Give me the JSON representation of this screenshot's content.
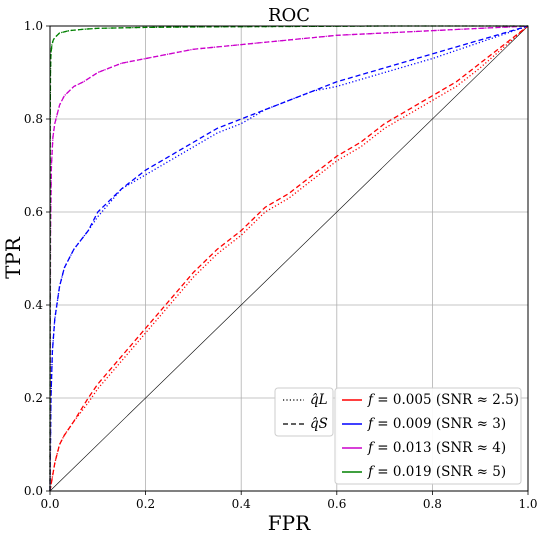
{
  "chart_data": {
    "type": "line",
    "title": "ROC",
    "xlabel": "FPR",
    "ylabel": "TPR",
    "xlim": [
      0,
      1
    ],
    "ylim": [
      0,
      1
    ],
    "xticks": [
      "0.0",
      "0.2",
      "0.4",
      "0.6",
      "0.8",
      "1.0"
    ],
    "yticks": [
      "0.0",
      "0.2",
      "0.4",
      "0.6",
      "0.8",
      "1.0"
    ],
    "grid": true,
    "diagonal_reference": true,
    "style_legend": {
      "placement": "lower-right",
      "entries": [
        {
          "label": "q̂L",
          "linestyle": "dotted"
        },
        {
          "label": "q̂S",
          "linestyle": "dashed"
        }
      ]
    },
    "series_legend_placement": "lower-right",
    "series": [
      {
        "name": "f = 0.005 (SNR ≈ 2.5)",
        "color": "#ff0000",
        "legend": {
          "f": "0.005",
          "snr": "2.5"
        },
        "x": [
          0,
          0.005,
          0.01,
          0.02,
          0.03,
          0.05,
          0.08,
          0.1,
          0.15,
          0.2,
          0.25,
          0.3,
          0.35,
          0.4,
          0.45,
          0.5,
          0.55,
          0.6,
          0.65,
          0.7,
          0.75,
          0.8,
          0.85,
          0.9,
          0.95,
          1.0
        ],
        "q_S": [
          0,
          0.03,
          0.06,
          0.1,
          0.12,
          0.15,
          0.2,
          0.23,
          0.29,
          0.35,
          0.41,
          0.47,
          0.52,
          0.56,
          0.61,
          0.64,
          0.68,
          0.72,
          0.75,
          0.79,
          0.82,
          0.85,
          0.88,
          0.92,
          0.96,
          1.0
        ],
        "q_L": [
          0,
          0.03,
          0.06,
          0.1,
          0.12,
          0.15,
          0.19,
          0.22,
          0.28,
          0.34,
          0.4,
          0.46,
          0.51,
          0.55,
          0.6,
          0.63,
          0.67,
          0.71,
          0.74,
          0.78,
          0.81,
          0.84,
          0.87,
          0.91,
          0.955,
          1.0
        ]
      },
      {
        "name": "f = 0.009 (SNR ≈ 3)",
        "color": "#0000ff",
        "legend": {
          "f": "0.009",
          "snr": "3"
        },
        "x": [
          0,
          0.002,
          0.005,
          0.01,
          0.02,
          0.03,
          0.05,
          0.08,
          0.1,
          0.15,
          0.2,
          0.25,
          0.3,
          0.35,
          0.4,
          0.45,
          0.5,
          0.55,
          0.6,
          0.7,
          0.8,
          0.9,
          1.0
        ],
        "q_S": [
          0,
          0.2,
          0.3,
          0.37,
          0.44,
          0.48,
          0.52,
          0.56,
          0.6,
          0.65,
          0.69,
          0.72,
          0.75,
          0.78,
          0.8,
          0.82,
          0.84,
          0.86,
          0.88,
          0.91,
          0.94,
          0.97,
          1.0
        ],
        "q_L": [
          0,
          0.2,
          0.3,
          0.37,
          0.44,
          0.48,
          0.52,
          0.56,
          0.59,
          0.65,
          0.68,
          0.71,
          0.74,
          0.77,
          0.79,
          0.82,
          0.84,
          0.86,
          0.87,
          0.9,
          0.93,
          0.965,
          1.0
        ]
      },
      {
        "name": "f = 0.013 (SNR ≈ 4)",
        "color": "#cc00cc",
        "legend": {
          "f": "0.013",
          "snr": "4"
        },
        "x": [
          0,
          0.001,
          0.003,
          0.006,
          0.01,
          0.015,
          0.02,
          0.03,
          0.04,
          0.05,
          0.07,
          0.1,
          0.15,
          0.2,
          0.3,
          0.4,
          0.5,
          0.6,
          0.7,
          0.8,
          0.9,
          1.0
        ],
        "q_S": [
          0,
          0.55,
          0.7,
          0.76,
          0.79,
          0.81,
          0.83,
          0.85,
          0.86,
          0.87,
          0.88,
          0.9,
          0.92,
          0.93,
          0.95,
          0.96,
          0.97,
          0.98,
          0.985,
          0.99,
          0.995,
          1.0
        ],
        "q_L": [
          0,
          0.55,
          0.7,
          0.76,
          0.79,
          0.81,
          0.83,
          0.85,
          0.86,
          0.87,
          0.88,
          0.9,
          0.92,
          0.93,
          0.95,
          0.96,
          0.97,
          0.98,
          0.985,
          0.99,
          0.995,
          1.0
        ]
      },
      {
        "name": "f = 0.019 (SNR ≈ 5)",
        "color": "#008000",
        "legend": {
          "f": "0.019",
          "snr": "5"
        },
        "x": [
          0,
          0.0005,
          0.001,
          0.002,
          0.004,
          0.007,
          0.01,
          0.02,
          0.04,
          0.07,
          0.1,
          0.2,
          0.3,
          0.5,
          0.7,
          1.0
        ],
        "q_S": [
          0,
          0.8,
          0.9,
          0.94,
          0.96,
          0.97,
          0.975,
          0.985,
          0.99,
          0.993,
          0.995,
          0.997,
          0.998,
          0.999,
          1.0,
          1.0
        ],
        "q_L": [
          0,
          0.8,
          0.9,
          0.94,
          0.96,
          0.97,
          0.975,
          0.985,
          0.99,
          0.993,
          0.995,
          0.997,
          0.998,
          0.999,
          1.0,
          1.0
        ]
      }
    ]
  }
}
